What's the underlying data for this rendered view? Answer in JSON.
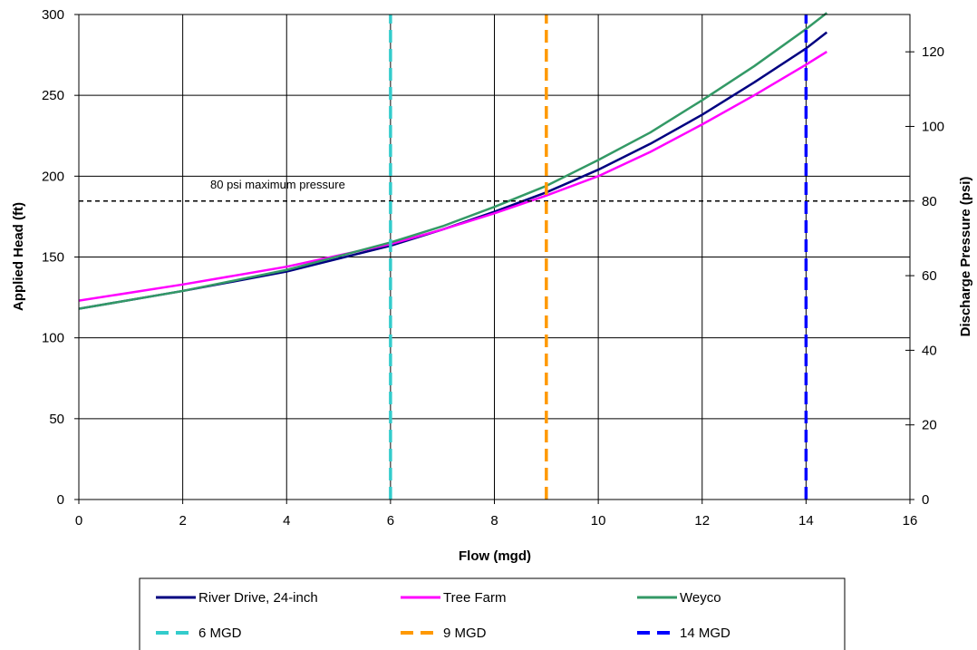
{
  "chart_data": {
    "type": "line",
    "title": "",
    "xlabel": "Flow (mgd)",
    "ylabel": "Applied Head (ft)",
    "y2label": "Discharge Pressure (psi)",
    "xlim": [
      0,
      16
    ],
    "ylim": [
      0,
      300
    ],
    "y2lim": [
      0,
      130
    ],
    "xticks": [
      0,
      2,
      4,
      6,
      8,
      10,
      12,
      14,
      16
    ],
    "yticks": [
      0,
      50,
      100,
      150,
      200,
      250,
      300
    ],
    "y2ticks": [
      0,
      20,
      40,
      60,
      80,
      100,
      120
    ],
    "grid": true,
    "legend_position": "bottom",
    "series": [
      {
        "name": "River Drive, 24-inch",
        "color": "#000080",
        "style": "solid",
        "x": [
          0,
          2,
          4,
          6,
          7,
          8,
          9,
          10,
          11,
          12,
          13,
          14,
          14.4
        ],
        "y": [
          118,
          129,
          141,
          157,
          167,
          178,
          190,
          204,
          220,
          238,
          258,
          279,
          289
        ]
      },
      {
        "name": "Tree Farm",
        "color": "#ff00ff",
        "style": "solid",
        "x": [
          0,
          2,
          4,
          6,
          7,
          8,
          9,
          10,
          11,
          12,
          13,
          14,
          14.4
        ],
        "y": [
          123,
          133,
          144,
          158,
          167,
          177,
          188,
          200,
          215,
          232,
          250,
          269,
          277
        ]
      },
      {
        "name": "Weyco",
        "color": "#339966",
        "style": "solid",
        "x": [
          0,
          2,
          4,
          6,
          7,
          8,
          9,
          10,
          11,
          12,
          13,
          14,
          14.4
        ],
        "y": [
          118,
          129,
          142,
          159,
          169,
          181,
          194,
          210,
          227,
          247,
          268,
          291,
          301
        ]
      },
      {
        "name": "6 MGD",
        "color": "#33cccc",
        "style": "dashed",
        "x": [
          6,
          6
        ],
        "y": [
          0,
          300
        ]
      },
      {
        "name": "9 MGD",
        "color": "#ff9900",
        "style": "dashed",
        "x": [
          9,
          9
        ],
        "y": [
          0,
          300
        ]
      },
      {
        "name": "14 MGD",
        "color": "#0000ff",
        "style": "dashed",
        "x": [
          14,
          14
        ],
        "y": [
          0,
          300
        ]
      }
    ],
    "reference_line": {
      "psi": 80,
      "label": "80 psi maximum pressure",
      "color": "#000000",
      "style": "dashed"
    }
  }
}
